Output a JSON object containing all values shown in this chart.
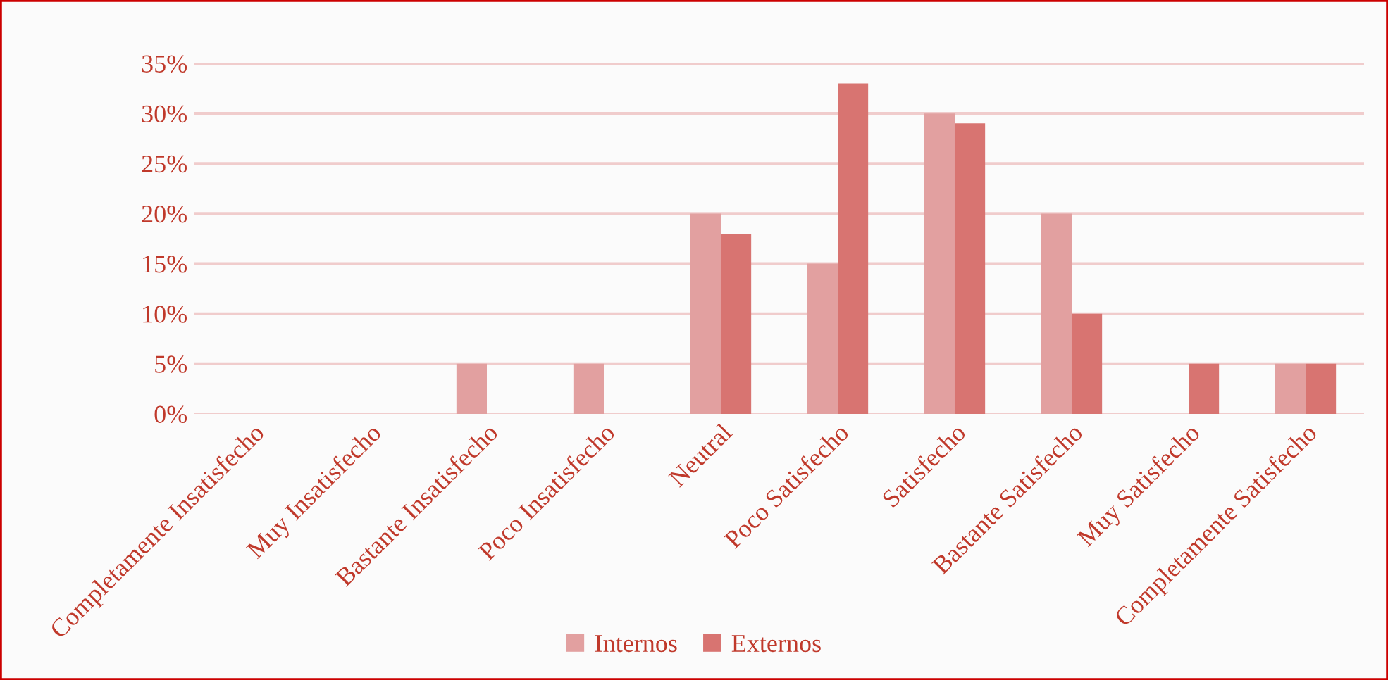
{
  "chart_data": {
    "type": "bar",
    "categories": [
      "Completamente Insatisfecho",
      "Muy Insatisfecho",
      "Bastante Insatisfecho",
      "Poco Insatisfecho",
      "Neutral",
      "Poco Satisfecho",
      "Satisfecho",
      "Bastante Satisfecho",
      "Muy Satisfecho",
      "Completamente Satisfecho"
    ],
    "series": [
      {
        "name": "Internos",
        "color": "#e2a0a0",
        "values": [
          0,
          0,
          5,
          5,
          20,
          15,
          30,
          20,
          0,
          5
        ]
      },
      {
        "name": "Externos",
        "color": "#d87471",
        "values": [
          0,
          0,
          0,
          0,
          18,
          33,
          29,
          10,
          5,
          5
        ]
      }
    ],
    "ylim": [
      0,
      35
    ],
    "yticks": [
      {
        "value": 0,
        "label": "0%"
      },
      {
        "value": 5,
        "label": "5%"
      },
      {
        "value": 10,
        "label": "10%"
      },
      {
        "value": 15,
        "label": "15%"
      },
      {
        "value": 20,
        "label": "20%"
      },
      {
        "value": 25,
        "label": "25%"
      },
      {
        "value": 30,
        "label": "30%"
      },
      {
        "value": 35,
        "label": "35%"
      }
    ],
    "grid": "y",
    "legend": "bottom"
  }
}
